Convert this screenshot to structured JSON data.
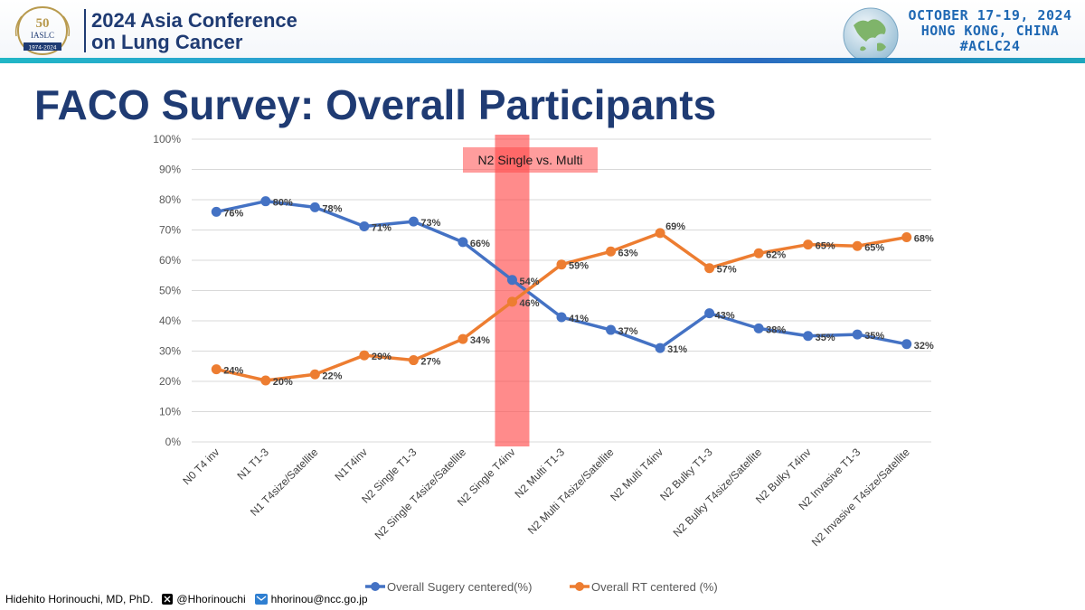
{
  "header": {
    "logo_text_top": "50",
    "logo_text_org": "IASLC",
    "logo_text_years": "1974-2024",
    "conference_line1": "2024 Asia Conference",
    "conference_line2": "on Lung Cancer",
    "event_dates": "OCTOBER 17-19, 2024",
    "event_location": "HONG KONG, CHINA",
    "event_hashtag": "#ACLC24"
  },
  "slide": {
    "title": "FACO Survey: Overall Participants"
  },
  "chart_data": {
    "type": "line",
    "categories": [
      "N0 T4 inv",
      "N1 T1-3",
      "N1 T4size/Satellite",
      "N1T4inv",
      "N2 Single T1-3",
      "N2 Single T4size/Satellite",
      "N2 Single T4inv",
      "N2 Multi T1-3",
      "N2 Multi T4size/Satellite",
      "N2 Multi T4inv",
      "N2 Bulky T1-3",
      "N2 Bulky T4size/Satellite",
      "N2 Bulky T4inv",
      "N2 Invasive T1-3",
      "N2 Invasive T4size/Satellite"
    ],
    "series": [
      {
        "name": "Overall Sugery centered(%)",
        "color": "#4472c4",
        "values": [
          76,
          79.5,
          77.5,
          71.2,
          72.8,
          66,
          53.5,
          41.2,
          37,
          31,
          42.5,
          37.5,
          35,
          35.5,
          32.3
        ],
        "labels": [
          "76%",
          "80%",
          "78%",
          "71%",
          "73%",
          "66%",
          "54%",
          "41%",
          "37%",
          "31%",
          "43%",
          "38%",
          "35%",
          "35%",
          "32%"
        ]
      },
      {
        "name": "Overall RT centered (%)",
        "color": "#ed7d31",
        "values": [
          24,
          20.3,
          22.3,
          28.6,
          27,
          34,
          46.3,
          58.6,
          62.9,
          69,
          57.4,
          62.3,
          65.2,
          64.7,
          67.6
        ],
        "labels": [
          "24%",
          "20%",
          "22%",
          "29%",
          "27%",
          "34%",
          "46%",
          "59%",
          "63%",
          "69%",
          "57%",
          "62%",
          "65%",
          "65%",
          "68%"
        ]
      }
    ],
    "y_ticks": [
      "0%",
      "10%",
      "20%",
      "30%",
      "40%",
      "50%",
      "60%",
      "70%",
      "80%",
      "90%",
      "100%"
    ],
    "ylim": [
      0,
      100
    ],
    "grid": true,
    "legend_position": "bottom",
    "highlight": {
      "category": "N2 Single T4inv",
      "label": "N2 Single vs. Multi",
      "color": "#ff4d4d"
    }
  },
  "footer": {
    "author": "Hidehito Horinouchi, MD, PhD.",
    "x_handle": "@Hhorinouchi",
    "email": "hhorinou@ncc.go.jp"
  }
}
